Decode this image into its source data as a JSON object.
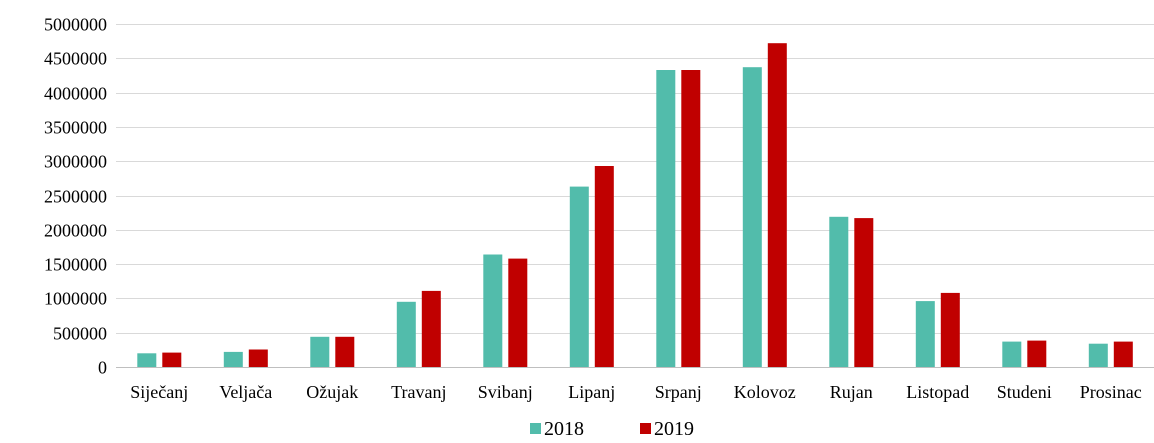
{
  "chart_data": {
    "type": "bar",
    "title": "",
    "xlabel": "",
    "ylabel": "",
    "ylim": [
      0,
      5000000
    ],
    "yticks": [
      0,
      500000,
      1000000,
      1500000,
      2000000,
      2500000,
      3000000,
      3500000,
      4000000,
      4500000,
      5000000
    ],
    "ytick_labels": [
      "0",
      "500000",
      "1000000",
      "1500000",
      "2000000",
      "2500000",
      "3000000",
      "3500000",
      "4000000",
      "4500000",
      "5000000"
    ],
    "grid": true,
    "legend_position": "bottom",
    "categories": [
      "Siječanj",
      "Veljača",
      "Ožujak",
      "Travanj",
      "Svibanj",
      "Lipanj",
      "Srpanj",
      "Kolovoz",
      "Rujan",
      "Listopad",
      "Studeni",
      "Prosinac"
    ],
    "series": [
      {
        "name": "2018",
        "color": "#52bcab",
        "values": [
          200000,
          220000,
          440000,
          950000,
          1640000,
          2630000,
          4330000,
          4370000,
          2190000,
          960000,
          370000,
          340000
        ]
      },
      {
        "name": "2019",
        "color": "#c00000",
        "values": [
          210000,
          255000,
          440000,
          1110000,
          1580000,
          2930000,
          4330000,
          4720000,
          2170000,
          1080000,
          385000,
          370000
        ]
      }
    ]
  }
}
